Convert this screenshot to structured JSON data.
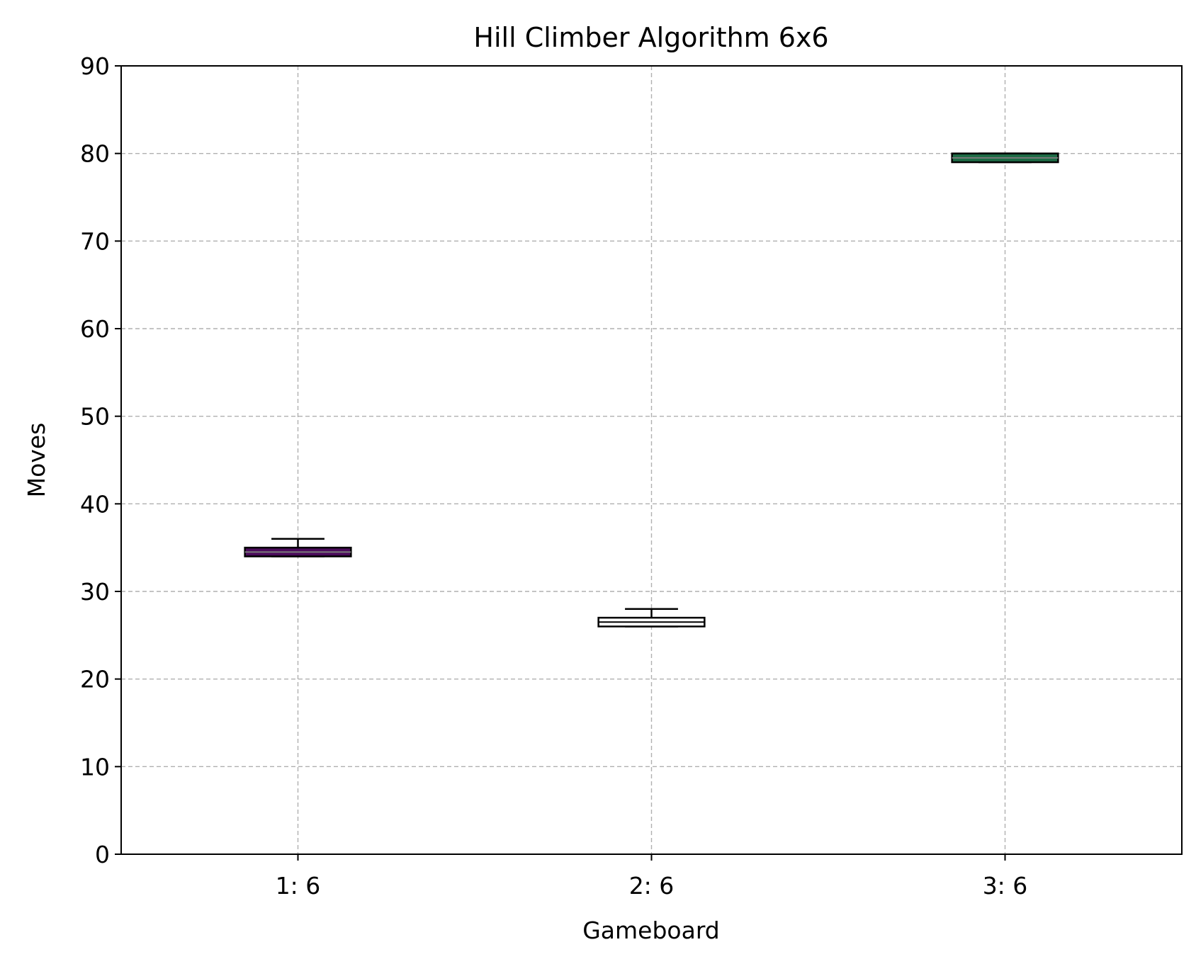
{
  "chart_data": {
    "type": "boxplot",
    "title": "Hill Climber Algorithm 6x6",
    "xlabel": "Gameboard",
    "ylabel": "Moves",
    "categories": [
      "1: 6",
      "2: 6",
      "3: 6"
    ],
    "ylim": [
      0,
      90
    ],
    "yticks": [
      "0",
      "10",
      "20",
      "30",
      "40",
      "50",
      "60",
      "70",
      "80",
      "90"
    ],
    "grid": true,
    "boxes": [
      {
        "category": "1: 6",
        "q1": 34,
        "median": 34.5,
        "q3": 35,
        "whisker_low": 34,
        "whisker_high": 36,
        "color": "#4b0b5c"
      },
      {
        "category": "2: 6",
        "q1": 26,
        "median": 26.5,
        "q3": 27,
        "whisker_low": 26,
        "whisker_high": 28,
        "color": "#ffffff"
      },
      {
        "category": "3: 6",
        "q1": 79,
        "median": 79.5,
        "q3": 80,
        "whisker_low": 79,
        "whisker_high": 80,
        "color": "#1d6b45"
      }
    ]
  }
}
